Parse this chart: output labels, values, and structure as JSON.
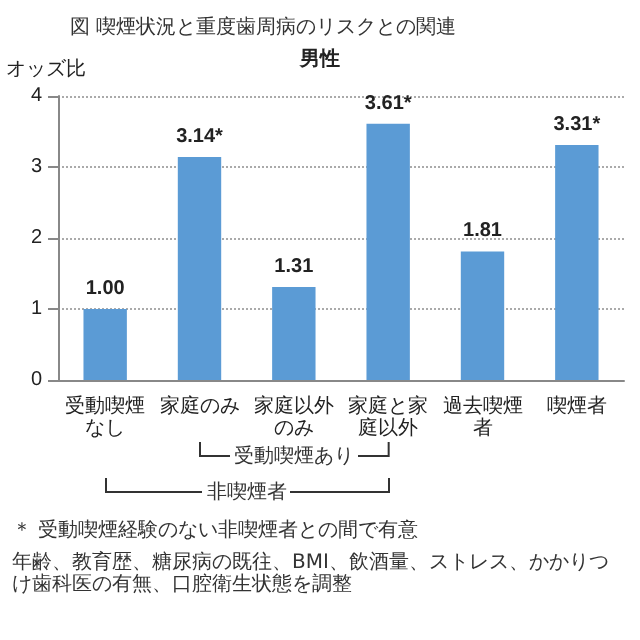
{
  "chart_data": {
    "type": "bar",
    "title": "図 喫煙状況と重度歯周病のリスクとの関連",
    "subtitle": "男性",
    "ylabel": "オッズ比",
    "categories": [
      "受動喫煙なし",
      "家庭のみ",
      "家庭以外のみ",
      "家庭と家庭以外",
      "過去喫煙者",
      "喫煙者"
    ],
    "values": [
      1.0,
      3.14,
      1.31,
      3.61,
      1.81,
      3.31
    ],
    "value_labels": [
      "1.00",
      "3.14*",
      "1.31",
      "3.61*",
      "1.81",
      "3.31*"
    ],
    "color": "#5b9bd5",
    "ylim": [
      0,
      4
    ],
    "yticks": [
      0,
      1,
      2,
      3,
      4
    ],
    "grid": "y",
    "annotations": [
      "受動喫煙あり",
      "非喫煙者",
      "＊ 受動喫煙経験のない非喫煙者との間で有意",
      "年齢、教育歴、糖尿病の既往、BMI、飲酒量、ストレス、かかりつけ歯科医の有無、口腔衛生状態を調整"
    ]
  }
}
